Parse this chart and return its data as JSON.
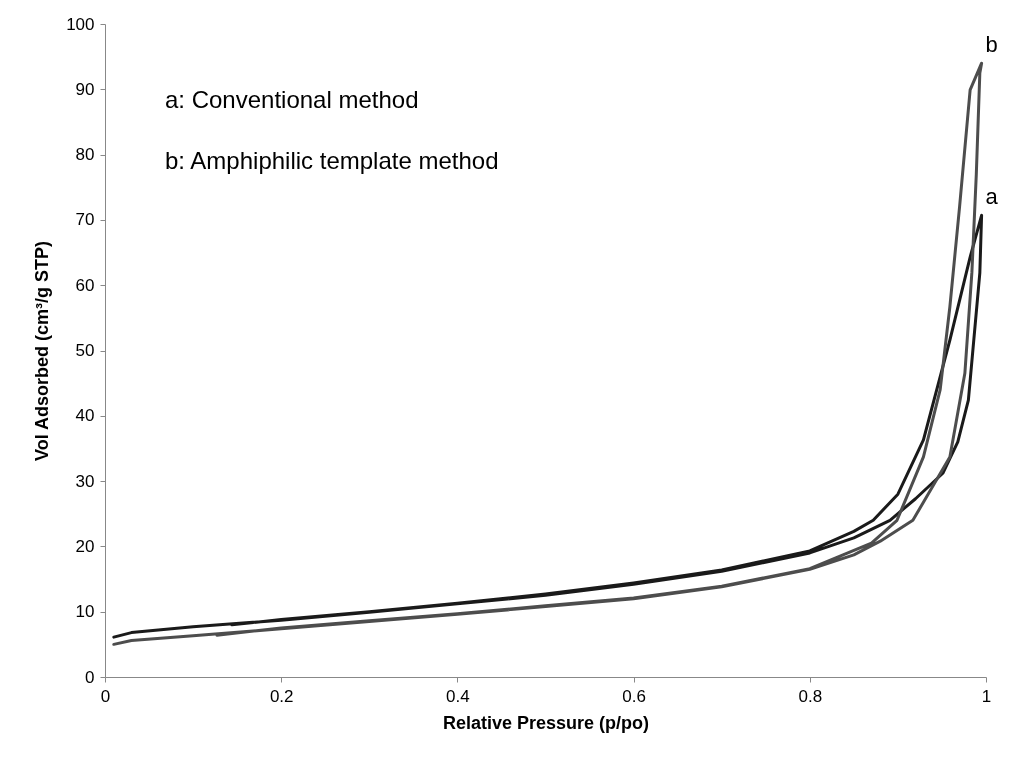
{
  "chart_data": {
    "type": "line",
    "xlabel": "Relative Pressure (p/po)",
    "ylabel": "Vol Adsorbed (cm³/g STP)",
    "annotations": [
      "a: Conventional method",
      "b: Amphiphilic template method"
    ],
    "series": [
      {
        "name": "a",
        "color": "#1a1a1a",
        "x": [
          0.01,
          0.03,
          0.1,
          0.2,
          0.3,
          0.4,
          0.5,
          0.6,
          0.7,
          0.8,
          0.85,
          0.891,
          0.92,
          0.951,
          0.968,
          0.98,
          0.993,
          0.995,
          0.982,
          0.959,
          0.929,
          0.9,
          0.872,
          0.85,
          0.8,
          0.7,
          0.6,
          0.5,
          0.4,
          0.3,
          0.2,
          0.144
        ],
        "values": [
          6.1,
          6.8,
          7.7,
          8.7,
          9.9,
          11.2,
          12.5,
          14.2,
          16.2,
          19.0,
          21.3,
          24.0,
          27.3,
          31.2,
          36,
          42.4,
          61.9,
          70.7,
          64.3,
          51.6,
          36.3,
          28,
          24,
          22.3,
          19.3,
          16.4,
          14.4,
          12.7,
          11.3,
          10.0,
          8.8,
          8.0
        ]
      },
      {
        "name": "b",
        "color": "#4d4d4d",
        "x": [
          0.01,
          0.03,
          0.1,
          0.2,
          0.3,
          0.4,
          0.5,
          0.6,
          0.7,
          0.8,
          0.85,
          0.88,
          0.917,
          0.959,
          0.976,
          0.984,
          0.989,
          0.993,
          0.995,
          0.982,
          0.97,
          0.959,
          0.948,
          0.929,
          0.899,
          0.87,
          0.8,
          0.7,
          0.6,
          0.5,
          0.4,
          0.3,
          0.2,
          0.127
        ],
        "values": [
          5.0,
          5.6,
          6.3,
          7.4,
          8.5,
          9.6,
          10.8,
          12.0,
          13.8,
          16.5,
          18.7,
          20.8,
          24,
          33.7,
          46.5,
          62,
          77,
          92.5,
          94,
          89.9,
          72,
          56.7,
          44,
          33.7,
          24,
          20.5,
          16.6,
          13.9,
          12.1,
          10.9,
          9.7,
          8.6,
          7.5,
          6.4
        ]
      }
    ],
    "xlim": [
      0,
      1
    ],
    "xticks": [
      0,
      0.2,
      0.4,
      0.6,
      0.8,
      1
    ],
    "ylim": [
      0,
      100
    ],
    "yticks": [
      0,
      10,
      20,
      30,
      40,
      50,
      60,
      70,
      80,
      90,
      100
    ],
    "marker": "none",
    "line_style": "solid"
  }
}
